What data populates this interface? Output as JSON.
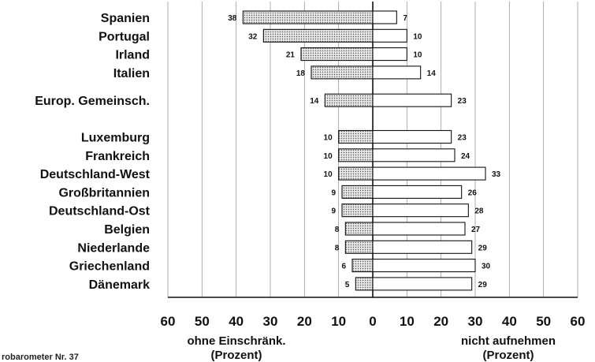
{
  "chart_data": {
    "type": "bar",
    "orientation": "horizontal-diverging",
    "categories": [
      "Spanien",
      "Portugal",
      "Irland",
      "Italien",
      "Europ. Gemeinsch.",
      "Luxemburg",
      "Frankreich",
      "Deutschland-West",
      "Großbritannien",
      "Deutschland-Ost",
      "Belgien",
      "Niederlande",
      "Griechenland",
      "Dänemark"
    ],
    "series": [
      {
        "side": "left",
        "pattern": "dotted-gray",
        "values": [
          38,
          32,
          21,
          18,
          14,
          10,
          10,
          10,
          9,
          9,
          8,
          8,
          6,
          5
        ]
      },
      {
        "side": "right",
        "pattern": "white",
        "values": [
          7,
          10,
          10,
          14,
          23,
          23,
          24,
          33,
          26,
          28,
          27,
          29,
          30,
          29
        ]
      }
    ],
    "x_ticks": [
      "60",
      "50",
      "40",
      "30",
      "20",
      "10",
      "0",
      "10",
      "20",
      "30",
      "40",
      "50",
      "60"
    ],
    "xlim": [
      -60,
      60
    ],
    "left_axis_label": [
      "ohne Einschränk.",
      "(Prozent)"
    ],
    "right_axis_label": [
      "nicht aufnehmen",
      "(Prozent)"
    ],
    "grid": true,
    "source_text": "robarometer Nr. 37"
  }
}
